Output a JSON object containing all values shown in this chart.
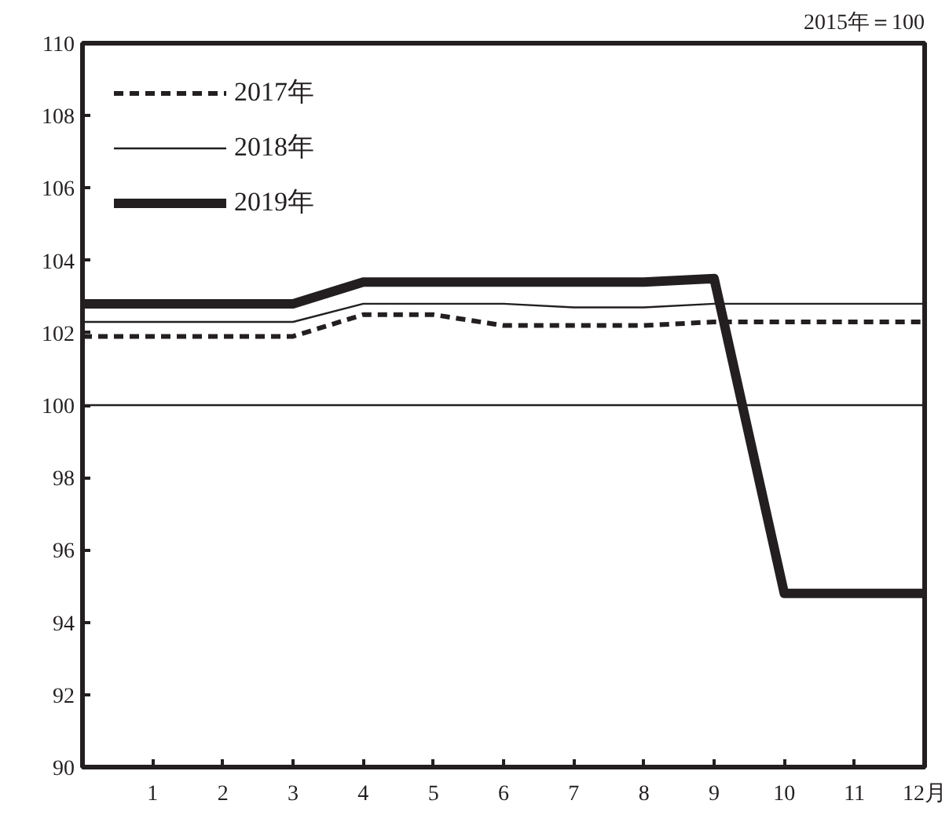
{
  "chart_data": {
    "type": "line",
    "x": [
      0,
      1,
      2,
      3,
      4,
      5,
      6,
      7,
      8,
      9,
      10,
      11,
      12
    ],
    "series": [
      {
        "name": "2017年",
        "color": "#231f20",
        "line_style": "dashed",
        "values": [
          101.9,
          101.9,
          101.9,
          101.9,
          102.5,
          102.5,
          102.2,
          102.2,
          102.2,
          102.3,
          102.3,
          102.3,
          102.3
        ]
      },
      {
        "name": "2018年",
        "color": "#231f20",
        "line_style": "solid",
        "values": [
          102.3,
          102.3,
          102.3,
          102.3,
          102.8,
          102.8,
          102.8,
          102.7,
          102.7,
          102.8,
          102.8,
          102.8,
          102.8
        ]
      },
      {
        "name": "2019年",
        "color": "#231f20",
        "line_style": "solid",
        "values": [
          102.8,
          102.8,
          102.8,
          102.8,
          103.4,
          103.4,
          103.4,
          103.4,
          103.4,
          103.5,
          94.8,
          94.8,
          94.8
        ]
      }
    ],
    "xlim": [
      0,
      12
    ],
    "xticks": [
      1,
      2,
      3,
      4,
      5,
      6,
      7,
      8,
      9,
      10,
      11,
      {
        "value": 12,
        "label": "12月"
      }
    ],
    "ylim": [
      90,
      110
    ],
    "yticks": [
      90,
      92,
      94,
      96,
      98,
      100,
      102,
      104,
      106,
      108,
      110
    ],
    "ref_lines": [
      {
        "axis": "y",
        "value": 100,
        "label": null,
        "color": "#231f20"
      }
    ],
    "annotations": [
      "2015年＝100"
    ],
    "legend": "top left",
    "grid": false,
    "marker": "none"
  }
}
